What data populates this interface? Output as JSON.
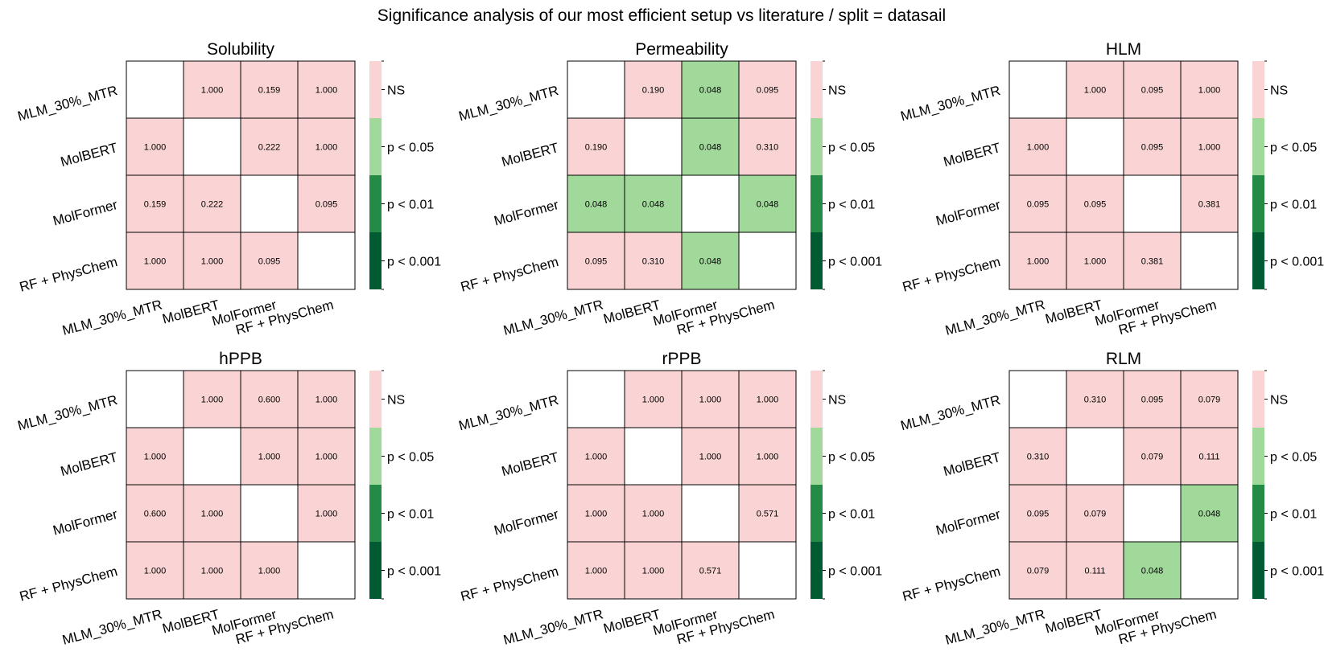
{
  "figure_title": "Significance analysis of our most efficient setup vs literature / split = datasail",
  "legend": {
    "levels": [
      {
        "label": "NS",
        "color": "#fad4d4"
      },
      {
        "label": "p < 0.05",
        "color": "#a1d99b"
      },
      {
        "label": "p < 0.01",
        "color": "#238b45"
      },
      {
        "label": "p < 0.001",
        "color": "#005a32"
      }
    ]
  },
  "chart_data": [
    {
      "type": "heatmap",
      "title": "Solubility",
      "categories": [
        "MLM_30%_MTR",
        "MolBERT",
        "MolFormer",
        "RF + PhysChem"
      ],
      "values": [
        [
          null,
          1.0,
          0.159,
          1.0
        ],
        [
          1.0,
          null,
          0.222,
          1.0
        ],
        [
          0.159,
          0.222,
          null,
          0.095
        ],
        [
          1.0,
          1.0,
          0.095,
          null
        ]
      ],
      "labels": [
        [
          "",
          "1.000",
          "0.159",
          "1.000"
        ],
        [
          "1.000",
          "",
          "0.222",
          "1.000"
        ],
        [
          "0.159",
          "0.222",
          "",
          "0.095"
        ],
        [
          "1.000",
          "1.000",
          "0.095",
          ""
        ]
      ]
    },
    {
      "type": "heatmap",
      "title": "Permeability",
      "categories": [
        "MLM_30%_MTR",
        "MolBERT",
        "MolFormer",
        "RF + PhysChem"
      ],
      "values": [
        [
          null,
          0.19,
          0.048,
          0.095
        ],
        [
          0.19,
          null,
          0.048,
          0.31
        ],
        [
          0.048,
          0.048,
          null,
          0.048
        ],
        [
          0.095,
          0.31,
          0.048,
          null
        ]
      ],
      "labels": [
        [
          "",
          "0.190",
          "0.048",
          "0.095"
        ],
        [
          "0.190",
          "",
          "0.048",
          "0.310"
        ],
        [
          "0.048",
          "0.048",
          "",
          "0.048"
        ],
        [
          "0.095",
          "0.310",
          "0.048",
          ""
        ]
      ]
    },
    {
      "type": "heatmap",
      "title": "HLM",
      "categories": [
        "MLM_30%_MTR",
        "MolBERT",
        "MolFormer",
        "RF + PhysChem"
      ],
      "values": [
        [
          null,
          1.0,
          0.095,
          1.0
        ],
        [
          1.0,
          null,
          0.095,
          1.0
        ],
        [
          0.095,
          0.095,
          null,
          0.381
        ],
        [
          1.0,
          1.0,
          0.381,
          null
        ]
      ],
      "labels": [
        [
          "",
          "1.000",
          "0.095",
          "1.000"
        ],
        [
          "1.000",
          "",
          "0.095",
          "1.000"
        ],
        [
          "0.095",
          "0.095",
          "",
          "0.381"
        ],
        [
          "1.000",
          "1.000",
          "0.381",
          ""
        ]
      ]
    },
    {
      "type": "heatmap",
      "title": "hPPB",
      "categories": [
        "MLM_30%_MTR",
        "MolBERT",
        "MolFormer",
        "RF + PhysChem"
      ],
      "values": [
        [
          null,
          1.0,
          0.6,
          1.0
        ],
        [
          1.0,
          null,
          1.0,
          1.0
        ],
        [
          0.6,
          1.0,
          null,
          1.0
        ],
        [
          1.0,
          1.0,
          1.0,
          null
        ]
      ],
      "labels": [
        [
          "",
          "1.000",
          "0.600",
          "1.000"
        ],
        [
          "1.000",
          "",
          "1.000",
          "1.000"
        ],
        [
          "0.600",
          "1.000",
          "",
          "1.000"
        ],
        [
          "1.000",
          "1.000",
          "1.000",
          ""
        ]
      ]
    },
    {
      "type": "heatmap",
      "title": "rPPB",
      "categories": [
        "MLM_30%_MTR",
        "MolBERT",
        "MolFormer",
        "RF + PhysChem"
      ],
      "values": [
        [
          null,
          1.0,
          1.0,
          1.0
        ],
        [
          1.0,
          null,
          1.0,
          1.0
        ],
        [
          1.0,
          1.0,
          null,
          0.571
        ],
        [
          1.0,
          1.0,
          0.571,
          null
        ]
      ],
      "labels": [
        [
          "",
          "1.000",
          "1.000",
          "1.000"
        ],
        [
          "1.000",
          "",
          "1.000",
          "1.000"
        ],
        [
          "1.000",
          "1.000",
          "",
          "0.571"
        ],
        [
          "1.000",
          "1.000",
          "0.571",
          ""
        ]
      ]
    },
    {
      "type": "heatmap",
      "title": "RLM",
      "categories": [
        "MLM_30%_MTR",
        "MolBERT",
        "MolFormer",
        "RF + PhysChem"
      ],
      "values": [
        [
          null,
          0.31,
          0.095,
          0.079
        ],
        [
          0.31,
          null,
          0.079,
          0.111
        ],
        [
          0.095,
          0.079,
          null,
          0.048
        ],
        [
          0.079,
          0.111,
          0.048,
          null
        ]
      ],
      "labels": [
        [
          "",
          "0.310",
          "0.095",
          "0.079"
        ],
        [
          "0.310",
          "",
          "0.079",
          "0.111"
        ],
        [
          "0.095",
          "0.079",
          "",
          "0.048"
        ],
        [
          "0.079",
          "0.111",
          "0.048",
          ""
        ]
      ]
    }
  ]
}
